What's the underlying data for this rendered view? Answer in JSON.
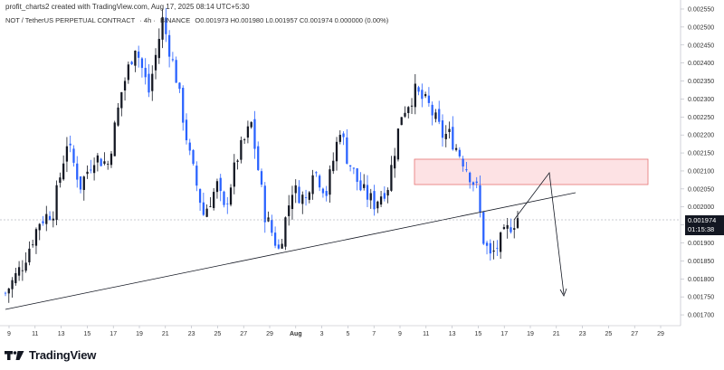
{
  "header": {
    "text": "profit_charts2 created with TradingView.com, Aug 17, 2025 08:14 UTC+5:30"
  },
  "symbol_bar": {
    "pair": "NOT / TetherUS PERPETUAL CONTRACT",
    "interval": "· 4h ·",
    "exchange": "BINANCE",
    "ohlc": "O0.001973 H0.001980 L0.001957 C0.001974 0.000000 (0.00%)"
  },
  "price_badge": {
    "price": "0.001974",
    "countdown": "01:15:38"
  },
  "brand": {
    "name": "TradingView"
  },
  "chart_data": {
    "type": "candlestick",
    "x_axis": {
      "labels": [
        "9",
        "11",
        "13",
        "15",
        "17",
        "19",
        "21",
        "23",
        "25",
        "27",
        "29",
        "Aug",
        "3",
        "5",
        "7",
        "9",
        "11",
        "13",
        "15",
        "17",
        "19",
        "21",
        "23",
        "25",
        "27",
        "29"
      ]
    },
    "y_axis": {
      "range": [
        0.00168,
        0.00256
      ],
      "ticks": [
        "0.002550",
        "0.002500",
        "0.002450",
        "0.002400",
        "0.002350",
        "0.002300",
        "0.002250",
        "0.002200",
        "0.002150",
        "0.002100",
        "0.002050",
        "0.002000",
        "0.001950",
        "0.001900",
        "0.001850",
        "0.001800",
        "0.001750",
        "0.001700"
      ]
    },
    "last_price": 0.001974,
    "colors": {
      "up": "#131722",
      "down": "#2962ff",
      "zone_fill": "#fde2e4",
      "zone_border": "#e57373",
      "trendline": "#131722",
      "projection": "#131722"
    },
    "candle_close_path": [
      [
        0,
        0.00176
      ],
      [
        5,
        0.00184
      ],
      [
        10,
        0.00196
      ],
      [
        14,
        0.00199
      ],
      [
        18,
        0.00218
      ],
      [
        22,
        0.00206
      ],
      [
        26,
        0.00214
      ],
      [
        30,
        0.00212
      ],
      [
        34,
        0.00232
      ],
      [
        38,
        0.00245
      ],
      [
        42,
        0.00232
      ],
      [
        46,
        0.00252
      ],
      [
        50,
        0.00236
      ],
      [
        54,
        0.00214
      ],
      [
        58,
        0.00198
      ],
      [
        62,
        0.00206
      ],
      [
        64,
        0.00199
      ],
      [
        68,
        0.00214
      ],
      [
        72,
        0.00223
      ],
      [
        76,
        0.00198
      ],
      [
        80,
        0.00188
      ],
      [
        84,
        0.00205
      ],
      [
        88,
        0.00202
      ],
      [
        90,
        0.00211
      ],
      [
        94,
        0.00204
      ],
      [
        98,
        0.00222
      ],
      [
        100,
        0.00214
      ],
      [
        104,
        0.00205
      ],
      [
        108,
        0.00201
      ],
      [
        112,
        0.00206
      ],
      [
        116,
        0.00226
      ],
      [
        120,
        0.00232
      ],
      [
        124,
        0.00228
      ],
      [
        128,
        0.0022
      ],
      [
        130,
        0.0022
      ],
      [
        134,
        0.00213
      ],
      [
        138,
        0.00205
      ],
      [
        140,
        0.00191
      ],
      [
        142,
        0.00186
      ],
      [
        144,
        0.00189
      ],
      [
        148,
        0.00195
      ],
      [
        150,
        0.00197
      ]
    ],
    "supply_zone": {
      "date_from": "Aug 9",
      "date_to": "Aug 29",
      "price_low": 0.002082,
      "price_high": 0.002158
    },
    "trendline": {
      "from": {
        "date": "Jul 8",
        "price": 0.00172
      },
      "to": {
        "date": "Aug 21",
        "price": 0.002055
      }
    },
    "projection": [
      {
        "date": "Aug 17",
        "price": 0.001974
      },
      {
        "date": "Aug 20",
        "price": 0.002115
      },
      {
        "date": "Aug 22",
        "price": 0.001765
      }
    ]
  }
}
